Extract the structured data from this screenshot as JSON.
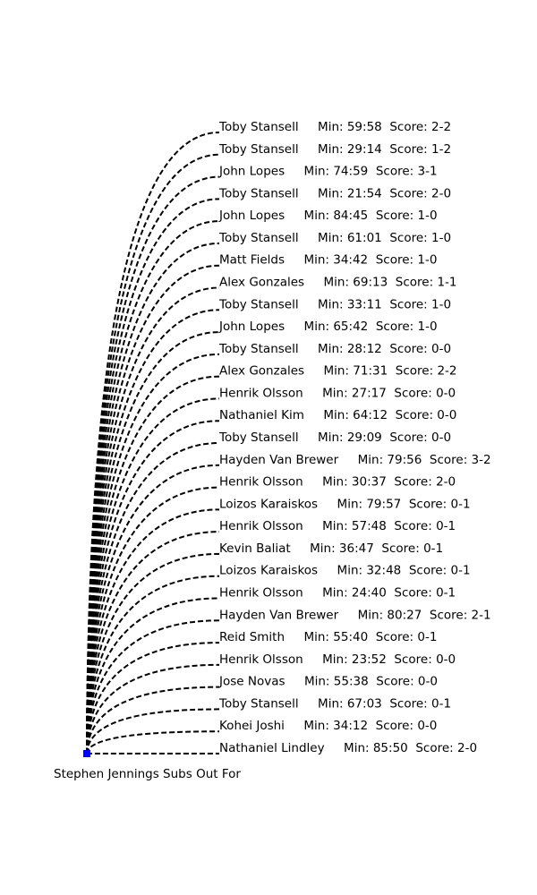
{
  "title": "Stephen Jennings Subs Out For",
  "marker_color": "#0000ff",
  "line_color": "#000000",
  "entries": [
    {
      "player": "Toby Stansell",
      "minute": "59:58",
      "score": "2-2"
    },
    {
      "player": "Toby Stansell",
      "minute": "29:14",
      "score": "1-2"
    },
    {
      "player": "John Lopes",
      "minute": "74:59",
      "score": "3-1"
    },
    {
      "player": "Toby Stansell",
      "minute": "21:54",
      "score": "2-0"
    },
    {
      "player": "John Lopes",
      "minute": "84:45",
      "score": "1-0"
    },
    {
      "player": "Toby Stansell",
      "minute": "61:01",
      "score": "1-0"
    },
    {
      "player": "Matt Fields",
      "minute": "34:42",
      "score": "1-0"
    },
    {
      "player": "Alex Gonzales",
      "minute": "69:13",
      "score": "1-1"
    },
    {
      "player": "Toby Stansell",
      "minute": "33:11",
      "score": "1-0"
    },
    {
      "player": "John Lopes",
      "minute": "65:42",
      "score": "1-0"
    },
    {
      "player": "Toby Stansell",
      "minute": "28:12",
      "score": "0-0"
    },
    {
      "player": "Alex Gonzales",
      "minute": "71:31",
      "score": "2-2"
    },
    {
      "player": "Henrik Olsson",
      "minute": "27:17",
      "score": "0-0"
    },
    {
      "player": "Nathaniel Kim",
      "minute": "64:12",
      "score": "0-0"
    },
    {
      "player": "Toby Stansell",
      "minute": "29:09",
      "score": "0-0"
    },
    {
      "player": "Hayden Van Brewer",
      "minute": "79:56",
      "score": "3-2"
    },
    {
      "player": "Henrik Olsson",
      "minute": "30:37",
      "score": "2-0"
    },
    {
      "player": "Loizos Karaiskos",
      "minute": "79:57",
      "score": "0-1"
    },
    {
      "player": "Henrik Olsson",
      "minute": "57:48",
      "score": "0-1"
    },
    {
      "player": "Kevin Baliat",
      "minute": "36:47",
      "score": "0-1"
    },
    {
      "player": "Loizos Karaiskos",
      "minute": "32:48",
      "score": "0-1"
    },
    {
      "player": "Henrik Olsson",
      "minute": "24:40",
      "score": "0-1"
    },
    {
      "player": "Hayden Van Brewer",
      "minute": "80:27",
      "score": "2-1"
    },
    {
      "player": "Reid Smith",
      "minute": "55:40",
      "score": "0-1"
    },
    {
      "player": "Henrik Olsson",
      "minute": "23:52",
      "score": "0-0"
    },
    {
      "player": "Jose Novas",
      "minute": "55:38",
      "score": "0-0"
    },
    {
      "player": "Toby Stansell",
      "minute": "67:03",
      "score": "0-1"
    },
    {
      "player": "Kohei Joshi",
      "minute": "34:12",
      "score": "0-0"
    },
    {
      "player": "Nathaniel Lindley",
      "minute": "85:50",
      "score": "2-0"
    }
  ]
}
